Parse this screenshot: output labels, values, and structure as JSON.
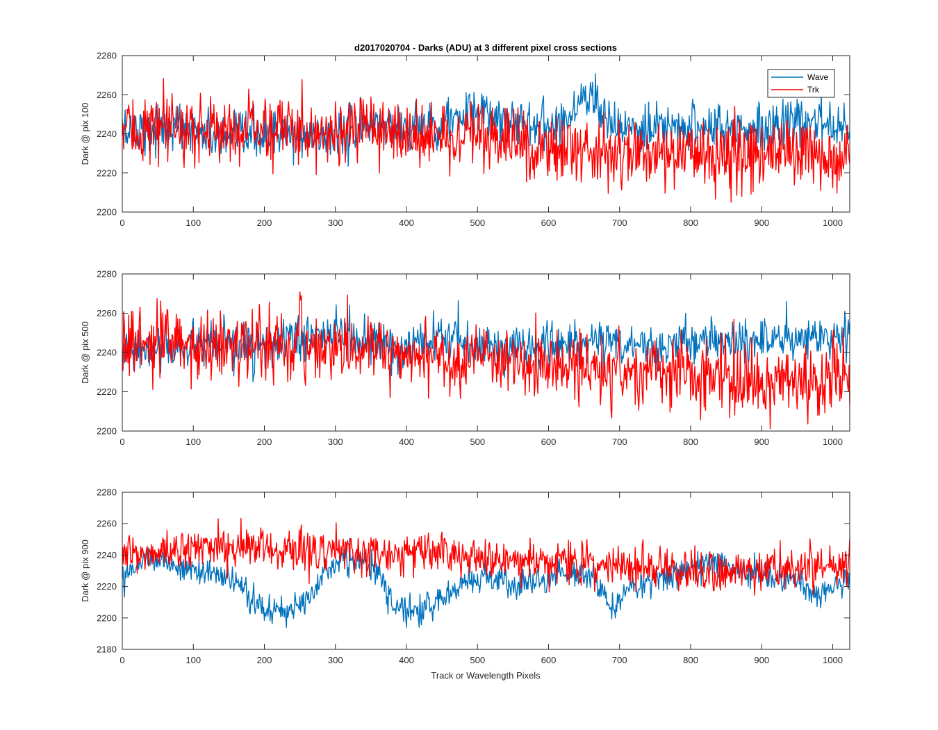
{
  "chart_data": [
    {
      "type": "line",
      "title": "d2017020704 - Darks (ADU) at 3 different pixel cross sections",
      "xlabel": "",
      "ylabel": "Dark @ pix 100",
      "xlim": [
        0,
        1024
      ],
      "ylim": [
        2200,
        2280
      ],
      "xticks": [
        0,
        100,
        200,
        300,
        400,
        500,
        600,
        700,
        800,
        900,
        1000
      ],
      "yticks": [
        2200,
        2220,
        2240,
        2260,
        2280
      ],
      "legend": {
        "placement": "top-right"
      },
      "series": [
        {
          "name": "Wave",
          "color": "#0072BD",
          "keypoints": [
            [
              0,
              2242
            ],
            [
              100,
              2243
            ],
            [
              150,
              2236
            ],
            [
              200,
              2240
            ],
            [
              260,
              2238
            ],
            [
              320,
              2240
            ],
            [
              360,
              2246
            ],
            [
              400,
              2243
            ],
            [
              450,
              2246
            ],
            [
              500,
              2250
            ],
            [
              550,
              2247
            ],
            [
              600,
              2245
            ],
            [
              630,
              2249
            ],
            [
              650,
              2260
            ],
            [
              670,
              2258
            ],
            [
              690,
              2244
            ],
            [
              730,
              2240
            ],
            [
              760,
              2242
            ],
            [
              800,
              2245
            ],
            [
              850,
              2242
            ],
            [
              900,
              2244
            ],
            [
              1000,
              2246
            ],
            [
              1024,
              2246
            ]
          ],
          "noise": 6.0
        },
        {
          "name": "Trk",
          "color": "#FF0000",
          "keypoints": [
            [
              0,
              2242
            ],
            [
              100,
              2242
            ],
            [
              200,
              2243
            ],
            [
              300,
              2242
            ],
            [
              400,
              2240
            ],
            [
              500,
              2237
            ],
            [
              600,
              2234
            ],
            [
              700,
              2230
            ],
            [
              800,
              2230
            ],
            [
              900,
              2230
            ],
            [
              1000,
              2228
            ],
            [
              1024,
              2228
            ]
          ],
          "noise": 8.5
        }
      ]
    },
    {
      "type": "line",
      "title": "",
      "xlabel": "",
      "ylabel": "Dark @ pix 500",
      "xlim": [
        0,
        1024
      ],
      "ylim": [
        2200,
        2280
      ],
      "xticks": [
        0,
        100,
        200,
        300,
        400,
        500,
        600,
        700,
        800,
        900,
        1000
      ],
      "yticks": [
        2200,
        2220,
        2240,
        2260,
        2280
      ],
      "series": [
        {
          "name": "Wave",
          "color": "#0072BD",
          "keypoints": [
            [
              0,
              2240
            ],
            [
              100,
              2243
            ],
            [
              200,
              2243
            ],
            [
              240,
              2246
            ],
            [
              300,
              2250
            ],
            [
              340,
              2246
            ],
            [
              400,
              2240
            ],
            [
              450,
              2248
            ],
            [
              500,
              2244
            ],
            [
              550,
              2242
            ],
            [
              600,
              2244
            ],
            [
              700,
              2246
            ],
            [
              750,
              2242
            ],
            [
              800,
              2246
            ],
            [
              900,
              2246
            ],
            [
              1000,
              2248
            ],
            [
              1024,
              2248
            ]
          ],
          "noise": 5.5
        },
        {
          "name": "Trk",
          "color": "#FF0000",
          "keypoints": [
            [
              0,
              2245
            ],
            [
              100,
              2243
            ],
            [
              200,
              2244
            ],
            [
              300,
              2242
            ],
            [
              400,
              2240
            ],
            [
              500,
              2236
            ],
            [
              600,
              2234
            ],
            [
              700,
              2230
            ],
            [
              800,
              2228
            ],
            [
              900,
              2226
            ],
            [
              1000,
              2226
            ],
            [
              1024,
              2226
            ]
          ],
          "noise": 8.5
        }
      ]
    },
    {
      "type": "line",
      "title": "",
      "xlabel": "Track or Wavelength Pixels",
      "ylabel": "Dark @ pix 900",
      "xlim": [
        0,
        1024
      ],
      "ylim": [
        2180,
        2280
      ],
      "xticks": [
        0,
        100,
        200,
        300,
        400,
        500,
        600,
        700,
        800,
        900,
        1000
      ],
      "yticks": [
        2180,
        2200,
        2220,
        2240,
        2260,
        2280
      ],
      "series": [
        {
          "name": "Wave",
          "color": "#0072BD",
          "keypoints": [
            [
              0,
              2228
            ],
            [
              40,
              2240
            ],
            [
              80,
              2232
            ],
            [
              130,
              2228
            ],
            [
              160,
              2222
            ],
            [
              200,
              2205
            ],
            [
              230,
              2203
            ],
            [
              260,
              2215
            ],
            [
              290,
              2232
            ],
            [
              330,
              2238
            ],
            [
              360,
              2228
            ],
            [
              380,
              2208
            ],
            [
              420,
              2205
            ],
            [
              450,
              2210
            ],
            [
              480,
              2225
            ],
            [
              520,
              2225
            ],
            [
              560,
              2220
            ],
            [
              620,
              2228
            ],
            [
              660,
              2228
            ],
            [
              690,
              2205
            ],
            [
              710,
              2218
            ],
            [
              760,
              2226
            ],
            [
              820,
              2236
            ],
            [
              880,
              2228
            ],
            [
              950,
              2225
            ],
            [
              980,
              2212
            ],
            [
              1010,
              2222
            ],
            [
              1024,
              2224
            ]
          ],
          "noise": 4.5
        },
        {
          "name": "Trk",
          "color": "#FF0000",
          "keypoints": [
            [
              0,
              2238
            ],
            [
              100,
              2245
            ],
            [
              200,
              2245
            ],
            [
              300,
              2242
            ],
            [
              400,
              2242
            ],
            [
              500,
              2238
            ],
            [
              600,
              2236
            ],
            [
              700,
              2234
            ],
            [
              800,
              2230
            ],
            [
              900,
              2230
            ],
            [
              1000,
              2232
            ],
            [
              1024,
              2232
            ]
          ],
          "noise": 6.5
        }
      ]
    }
  ]
}
